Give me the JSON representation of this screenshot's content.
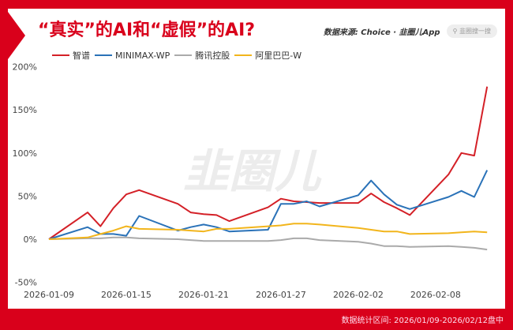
{
  "title": "“真实”的AI和“虚假”的AI?",
  "source": "数据来源: Choice · 韭圈儿App",
  "search_placeholder": "韭圈搜一搜",
  "footer": "数据统计区间: 2026/01/09-2026/02/12盘中",
  "watermark": "韭圈儿",
  "chart_data": {
    "type": "line",
    "title": "“真实”的AI和“虚假”的AI?",
    "ylim": [
      -50,
      200
    ],
    "yticks": [
      "-50%",
      "0%",
      "50%",
      "100%",
      "150%",
      "200%"
    ],
    "xticks": [
      "2026-01-09",
      "2026-01-15",
      "2026-01-21",
      "2026-01-27",
      "2026-02-02",
      "2026-02-08"
    ],
    "legend": "top-left",
    "x": [
      "2026-01-09",
      "2026-01-12",
      "2026-01-13",
      "2026-01-14",
      "2026-01-15",
      "2026-01-16",
      "2026-01-19",
      "2026-01-20",
      "2026-01-21",
      "2026-01-22",
      "2026-01-23",
      "2026-01-26",
      "2026-01-27",
      "2026-01-28",
      "2026-01-29",
      "2026-01-30",
      "2026-02-02",
      "2026-02-03",
      "2026-02-04",
      "2026-02-05",
      "2026-02-06",
      "2026-02-09",
      "2026-02-10",
      "2026-02-11",
      "2026-02-12"
    ],
    "series": [
      {
        "name": "智谱",
        "color": "#d42027",
        "values": [
          0,
          31,
          15,
          36,
          52,
          57,
          41,
          31,
          29,
          28,
          21,
          37,
          47,
          44,
          43,
          42,
          42,
          53,
          43,
          36,
          28,
          75,
          100,
          97,
          177
        ]
      },
      {
        "name": "MINIMAX-WP",
        "color": "#2a72b8",
        "values": [
          0,
          14,
          6,
          6,
          4,
          27,
          10,
          14,
          17,
          14,
          9,
          11,
          41,
          41,
          44,
          38,
          51,
          68,
          52,
          40,
          35,
          49,
          56,
          49,
          80
        ]
      },
      {
        "name": "腾讯控股",
        "color": "#aaaaaa",
        "values": [
          0,
          1,
          1,
          2,
          2,
          1,
          0,
          -1,
          -2,
          -2,
          -2,
          -2,
          -1,
          1,
          1,
          -1,
          -3,
          -5,
          -8,
          -8,
          -9,
          -8,
          -9,
          -10,
          -12
        ]
      },
      {
        "name": "阿里巴巴-W",
        "color": "#f2b51c",
        "values": [
          0,
          2,
          6,
          10,
          15,
          12,
          11,
          10,
          9,
          12,
          12,
          15,
          16,
          18,
          18,
          17,
          13,
          11,
          9,
          9,
          6,
          7,
          8,
          9,
          8
        ]
      }
    ]
  }
}
